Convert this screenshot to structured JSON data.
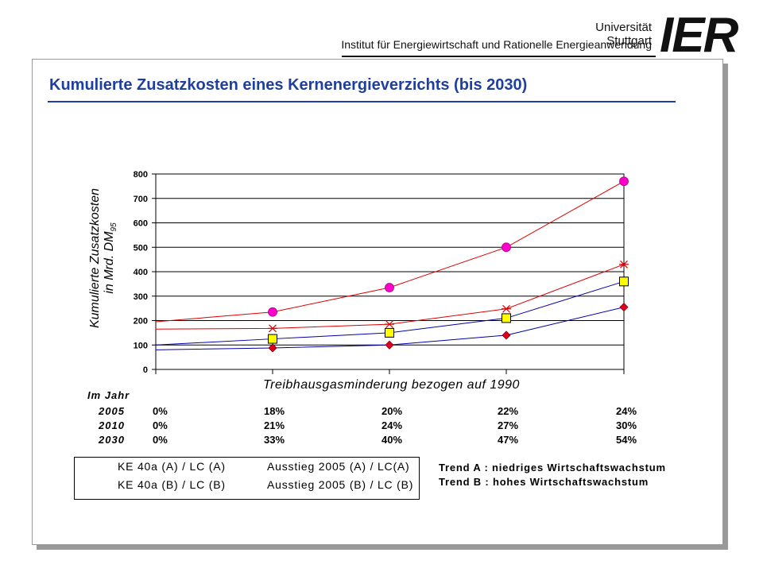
{
  "header": {
    "university": "Universität Stuttgart",
    "institute": "Institut für Energiewirtschaft und Rationelle Energieanwendung",
    "logo": "IER"
  },
  "slide": {
    "title": "Kumulierte Zusatzkosten eines Kernenergieverzichts (bis 2030)"
  },
  "chart_data": {
    "type": "line",
    "ylabel_line1": "Kumulierte Zusatzkosten",
    "ylabel_line2": "in Mrd. DM",
    "ylabel_sub": "95",
    "xlabel": "Treibhausgasminderung bezogen auf 1990",
    "ylim": [
      0,
      800
    ],
    "yticks": [
      "0",
      "100",
      "200",
      "300",
      "400",
      "500",
      "600",
      "700",
      "800"
    ],
    "x_positions": [
      0,
      1,
      2,
      3,
      4
    ],
    "grid": "horizontal",
    "series": [
      {
        "name": "KE 40a (A) / LC (A)",
        "color": "#0000aa",
        "marker": "diamond",
        "marker_color": "#dd0022",
        "values": [
          80,
          88,
          100,
          140,
          255
        ]
      },
      {
        "name": "Ausstieg 2005 (A) / LC(A)",
        "color": "#dd0000",
        "marker": "star",
        "marker_color": "#dd0000",
        "values": [
          165,
          168,
          185,
          248,
          430
        ]
      },
      {
        "name": "KE 40a (B) / LC (B)",
        "color": "#0000aa",
        "marker": "square",
        "marker_color": "#ffff00",
        "values": [
          100,
          125,
          150,
          210,
          360
        ]
      },
      {
        "name": "Ausstieg 2005 (B) / LC (B)",
        "color": "#dd0000",
        "marker": "circle",
        "marker_color": "#ff00cc",
        "values": [
          195,
          235,
          335,
          500,
          770
        ]
      }
    ],
    "year_table": {
      "header": "Im Jahr",
      "rows": [
        {
          "year": "2005",
          "values": [
            "0%",
            "18%",
            "20%",
            "22%",
            "24%"
          ]
        },
        {
          "year": "2010",
          "values": [
            "0%",
            "21%",
            "24%",
            "27%",
            "30%"
          ]
        },
        {
          "year": "2030",
          "values": [
            "0%",
            "33%",
            "40%",
            "47%",
            "54%"
          ]
        }
      ]
    },
    "trends": [
      "Trend A : niedriges Wirtschaftswachstum",
      "Trend B : hohes Wirtschaftswachstum"
    ]
  }
}
